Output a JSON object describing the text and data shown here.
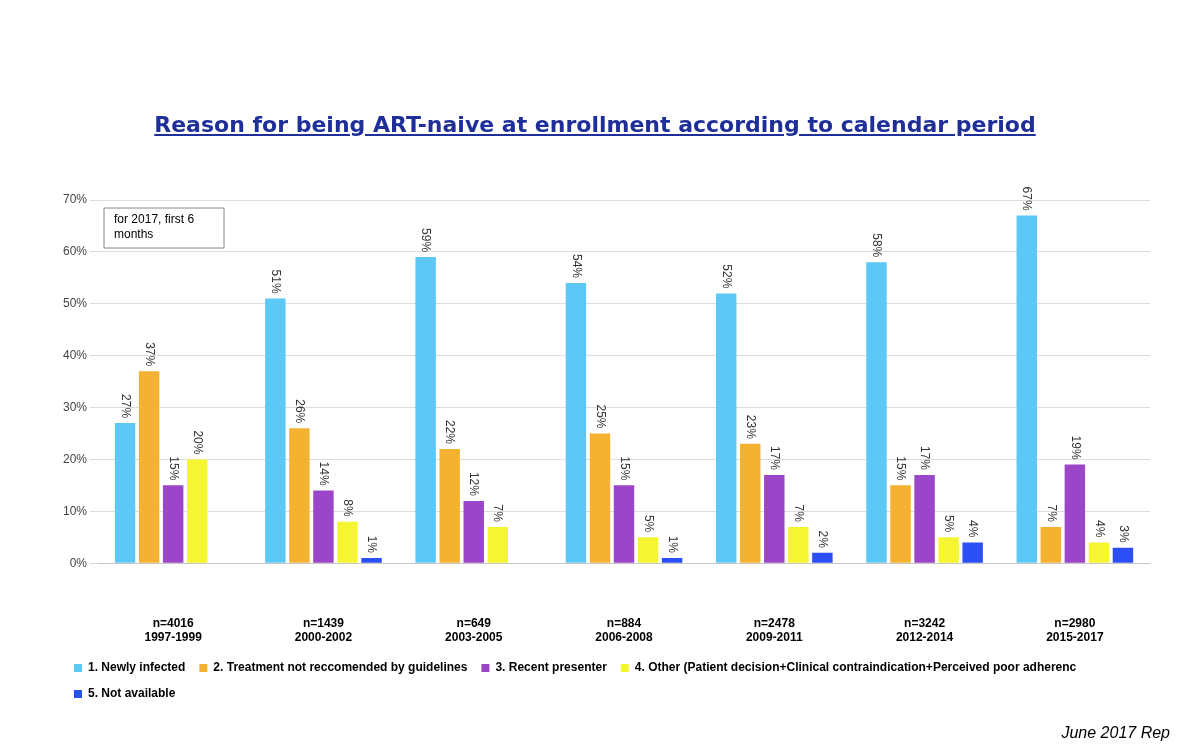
{
  "chart_data": {
    "type": "bar",
    "title": "Reason for being ART-naive at enrollment according to calendar period",
    "categories": [
      "n=4016\n1997-1999",
      "n=1439\n2000-2002",
      "n=649\n2003-2005",
      "n=884\n2006-2008",
      "n=2478\n2009-2011",
      "n=3242\n2012-2014",
      "n=2980\n2015-2017"
    ],
    "series": [
      {
        "name": "1. Newly infected",
        "color": "#5bc8f5",
        "values": [
          27,
          51,
          59,
          54,
          52,
          58,
          67
        ],
        "value_labels": [
          "27%",
          "51%",
          "59%",
          "54%",
          "52%",
          "58%",
          "67%"
        ]
      },
      {
        "name": "2. Treatment not reccomended by guidelines",
        "color": "#f5b132",
        "values": [
          37,
          26,
          22,
          25,
          23,
          15,
          7
        ],
        "value_labels": [
          "37%",
          "26%",
          "22%",
          "25%",
          "23%",
          "15%",
          "7%"
        ]
      },
      {
        "name": "3. Recent presenter",
        "color": "#9b45c9",
        "values": [
          15,
          14,
          12,
          15,
          17,
          17,
          19
        ],
        "value_labels": [
          "15%",
          "14%",
          "12%",
          "15%",
          "17%",
          "17%",
          "19%"
        ]
      },
      {
        "name": "4. Other (Patient decision+Clinical contraindication+Perceived poor adherenc",
        "color": "#f5f532",
        "values": [
          20,
          8,
          7,
          5,
          7,
          5,
          4
        ],
        "value_labels": [
          "20%",
          "8%",
          "7%",
          "5%",
          "7%",
          "5%",
          "4%"
        ]
      },
      {
        "name": "5. Not available",
        "color": "#2b4ef5",
        "values": [
          null,
          1,
          null,
          1,
          2,
          4,
          3
        ],
        "value_labels": [
          null,
          "1%",
          null,
          "1%",
          "2%",
          "4%",
          "3%"
        ]
      }
    ],
    "ylim": [
      0,
      70
    ],
    "yticks": [
      {
        "value": 0,
        "label": "0%"
      },
      {
        "value": 10,
        "label": "10%"
      },
      {
        "value": 20,
        "label": "20%"
      },
      {
        "value": 30,
        "label": "30%"
      },
      {
        "value": 40,
        "label": "40%"
      },
      {
        "value": 50,
        "label": "50%"
      },
      {
        "value": 60,
        "label": "60%"
      },
      {
        "value": 70,
        "label": "70%"
      }
    ],
    "grid": "y",
    "legend": "bottom",
    "annotations": [
      "for 2017, first 6 months",
      "June 2017 Rep"
    ]
  }
}
